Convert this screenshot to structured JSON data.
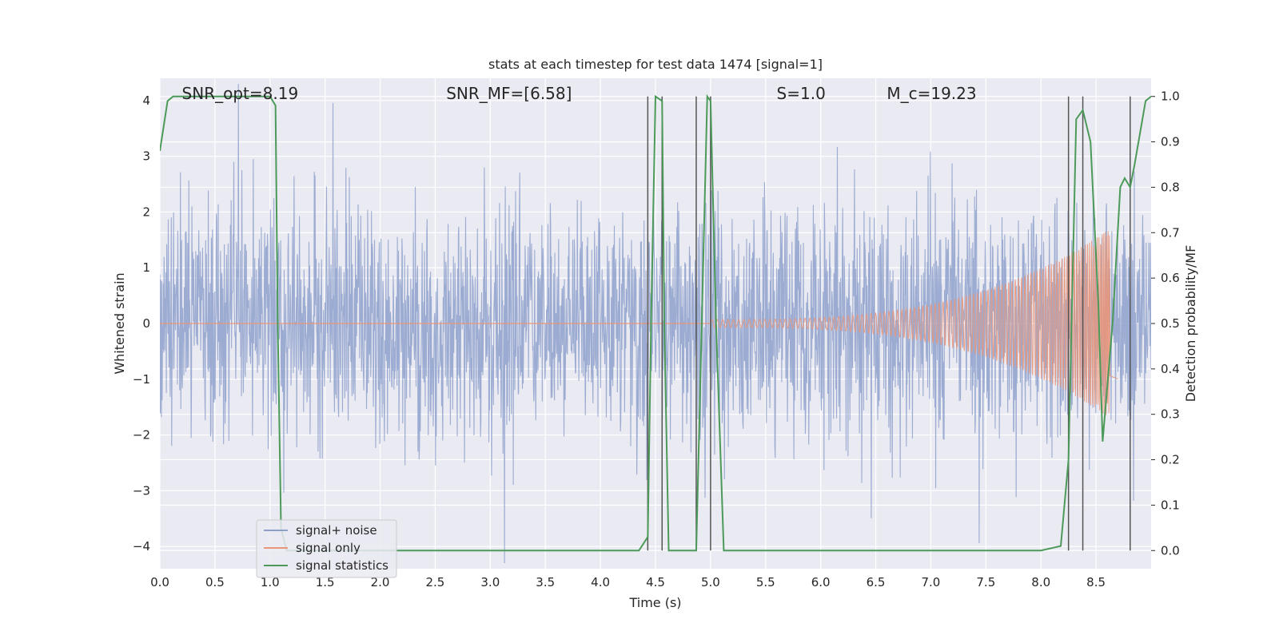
{
  "chart_data": {
    "type": "line",
    "title": "stats at each timestep for test data 1474 [signal=1]",
    "xlabel": "Time (s)",
    "ylabel_left": "Whitened strain",
    "ylabel_right": "Detection probability/MF",
    "xlim": [
      0.0,
      9.0
    ],
    "ylim_left": [
      -4.4,
      4.4
    ],
    "ylim_right": [
      -0.04,
      1.04
    ],
    "grid": true,
    "x_ticks": [
      "0.0",
      "0.5",
      "1.0",
      "1.5",
      "2.0",
      "2.5",
      "3.0",
      "3.5",
      "4.0",
      "4.5",
      "5.0",
      "5.5",
      "6.0",
      "6.5",
      "7.0",
      "7.5",
      "8.0",
      "8.5"
    ],
    "y_ticks_left": [
      "−4",
      "−3",
      "−2",
      "−1",
      "0",
      "1",
      "2",
      "3",
      "4"
    ],
    "y_ticks_right": [
      "0.0",
      "0.1",
      "0.2",
      "0.3",
      "0.4",
      "0.5",
      "0.6",
      "0.7",
      "0.8",
      "0.9",
      "1.0"
    ],
    "legend_placement": "lower-left",
    "annotations": [
      {
        "text": "SNR_opt=8.19",
        "x": 0.2
      },
      {
        "text": "SNR_MF=[6.58]",
        "x": 2.6
      },
      {
        "text": "S=1.0",
        "x": 5.6
      },
      {
        "text": "M_c=19.23",
        "x": 6.6
      }
    ],
    "vertical_lines_x": [
      4.43,
      4.56,
      4.87,
      5.0,
      8.25,
      8.38,
      8.81
    ],
    "series": [
      {
        "name": "signal+ noise",
        "axis": "left",
        "color": "#8da0cb",
        "note_amplitude": "whitened strain noise, typical envelope ±2, peaks to ±4",
        "t_range": [
          0.0,
          9.0
        ]
      },
      {
        "name": "signal only",
        "axis": "left",
        "color": "#e9967a",
        "chirp_start": 5.0,
        "chirp_end": 8.7,
        "amplitude_end": 1.8
      },
      {
        "name": "signal statistics",
        "axis": "right",
        "color": "#4c9a5a",
        "x": [
          0.0,
          0.07,
          0.12,
          0.5,
          1.0,
          1.05,
          1.07,
          1.1,
          1.15,
          1.2,
          2.0,
          3.0,
          4.0,
          4.35,
          4.43,
          4.46,
          4.5,
          4.56,
          4.58,
          4.62,
          4.8,
          4.87,
          4.92,
          4.97,
          5.0,
          5.05,
          5.12,
          6.0,
          7.0,
          8.0,
          8.18,
          8.25,
          8.32,
          8.38,
          8.45,
          8.52,
          8.56,
          8.65,
          8.72,
          8.76,
          8.81,
          8.85,
          8.9,
          8.95,
          9.0
        ],
        "y": [
          0.88,
          0.99,
          1.0,
          1.0,
          1.0,
          0.98,
          0.5,
          0.05,
          0.0,
          0.0,
          0.0,
          0.0,
          0.0,
          0.0,
          0.03,
          0.5,
          1.0,
          0.99,
          0.5,
          0.0,
          0.0,
          0.0,
          0.5,
          1.0,
          0.99,
          0.5,
          0.0,
          0.0,
          0.0,
          0.0,
          0.01,
          0.2,
          0.95,
          0.97,
          0.9,
          0.55,
          0.24,
          0.5,
          0.8,
          0.82,
          0.8,
          0.85,
          0.92,
          0.99,
          1.0
        ]
      }
    ]
  }
}
